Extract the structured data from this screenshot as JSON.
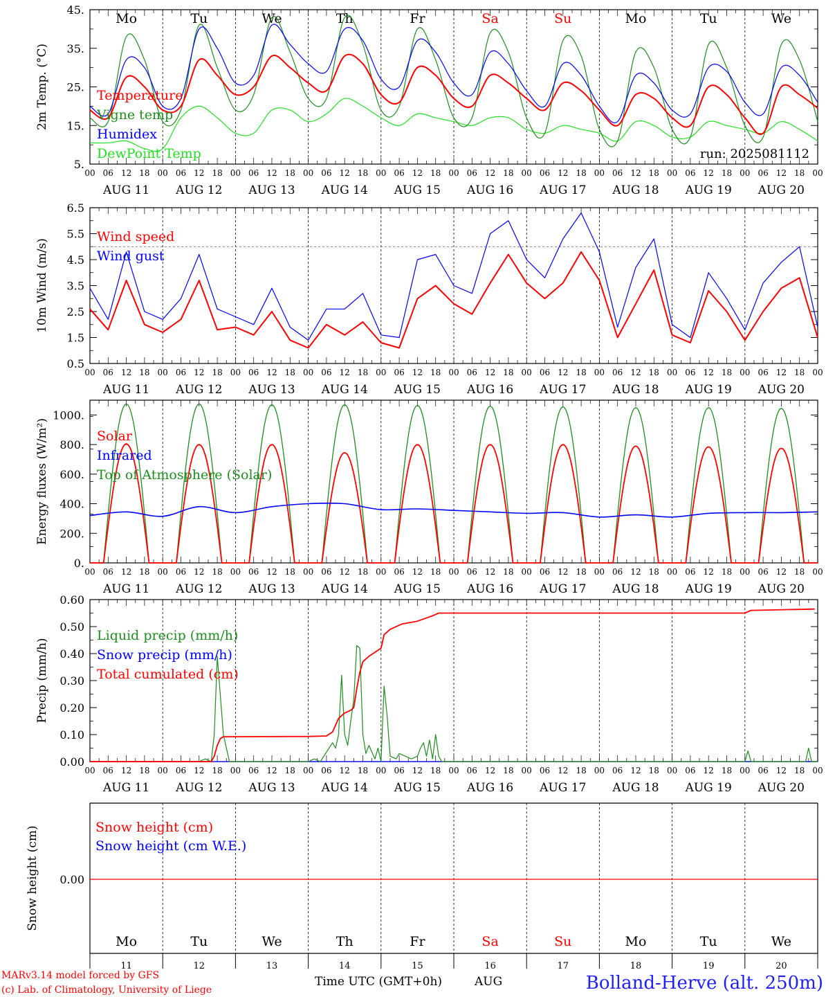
{
  "colors": {
    "red": "#ff0000",
    "green": "#1e8c1e",
    "blue": "#0000ff",
    "lightgreen": "#22e022",
    "axis": "#000000",
    "location_blue": "#2020ff"
  },
  "days": {
    "weekdays_top": [
      "Mo",
      "Tu",
      "We",
      "Th",
      "Fr",
      "Sa",
      "Su",
      "Mo",
      "Tu",
      "We"
    ],
    "weekend_flags": [
      false,
      false,
      false,
      false,
      false,
      true,
      true,
      false,
      false,
      false
    ],
    "date_labels": [
      "AUG 11",
      "AUG 12",
      "AUG 13",
      "AUG 14",
      "AUG 15",
      "AUG 16",
      "AUG 17",
      "AUG 18",
      "AUG 19",
      "AUG 20"
    ],
    "day_numbers": [
      "11",
      "12",
      "13",
      "14",
      "15",
      "16",
      "17",
      "18",
      "19",
      "20"
    ],
    "hour_ticks": [
      "00",
      "06",
      "12",
      "18"
    ],
    "final_hour": "00"
  },
  "footer": {
    "credit_line1": "MARv3.14 model forced by GFS",
    "credit_line2": "(c) Lab. of Climatology, University of Liege",
    "time_label": "Time UTC (GMT+0h)",
    "month": "AUG",
    "location": "Bolland-Herve (alt. 250m)"
  },
  "chart_data": [
    {
      "id": "temperature",
      "type": "line",
      "ylabel": "2m Temp. (°C)",
      "ylim": [
        5,
        45
      ],
      "yticks": [
        "5.",
        "15.",
        "25.",
        "35.",
        "45."
      ],
      "run_label": "run: 2025081112",
      "legend": [
        {
          "label": "Temperature",
          "color": "red"
        },
        {
          "label": "Vigne temp",
          "color": "green"
        },
        {
          "label": "Humidex",
          "color": "blue"
        },
        {
          "label": "DewPoint Temp",
          "color": "lightgreen"
        }
      ],
      "x_hours": [
        0,
        6,
        12,
        18,
        24,
        30,
        36,
        42,
        48,
        54,
        60,
        66,
        72,
        78,
        84,
        90,
        96,
        102,
        108,
        114,
        120,
        126,
        132,
        138,
        144,
        150,
        156,
        162,
        168,
        174,
        180,
        186,
        192,
        198,
        204,
        210,
        216,
        222,
        228,
        234,
        240
      ],
      "series": [
        {
          "name": "Temperature",
          "color": "red",
          "values": [
            19,
            17,
            27.5,
            25,
            19,
            20,
            32,
            28,
            23,
            25,
            33,
            30,
            26,
            24,
            33,
            31,
            23,
            21,
            30,
            28,
            22,
            20,
            28,
            26,
            22,
            19,
            26,
            24,
            19,
            15,
            23,
            22,
            17,
            15,
            25,
            23,
            17,
            13,
            25,
            23,
            19.5
          ]
        },
        {
          "name": "Vigne temp",
          "color": "green",
          "values": [
            17,
            16,
            38,
            32,
            16,
            19,
            41,
            30,
            19,
            23,
            43,
            34,
            22,
            22,
            43,
            36,
            19,
            20,
            40,
            32,
            17,
            17,
            39,
            34,
            17,
            13,
            37,
            33,
            14,
            11,
            34,
            30,
            14,
            12,
            36,
            30,
            15,
            12,
            36,
            32,
            16
          ]
        },
        {
          "name": "Humidex",
          "color": "blue",
          "values": [
            20,
            18,
            32,
            30,
            20,
            22,
            40,
            35,
            26,
            28,
            41,
            36,
            31,
            29,
            40,
            37,
            27,
            25,
            37,
            34,
            26,
            23,
            34,
            31,
            24,
            20,
            31,
            28,
            20,
            16,
            28,
            26,
            19,
            18,
            30,
            29,
            21,
            18,
            30,
            28,
            21
          ]
        },
        {
          "name": "DewPoint Temp",
          "color": "lightgreen",
          "values": [
            10.5,
            10.5,
            11,
            9,
            9,
            17,
            20,
            17,
            13,
            13,
            19,
            19,
            16,
            18,
            22,
            20,
            17,
            15,
            18,
            17,
            16,
            15,
            17,
            17,
            14,
            13,
            15,
            14,
            13,
            11,
            16,
            15,
            12,
            12,
            16,
            15,
            14,
            13,
            16,
            14,
            11
          ]
        }
      ]
    },
    {
      "id": "wind",
      "type": "line",
      "ylabel": "10m Wind (m/s)",
      "ylim": [
        0.5,
        6.5
      ],
      "yticks": [
        "0.5",
        "1.5",
        "2.5",
        "3.5",
        "4.5",
        "5.5",
        "6.5"
      ],
      "reference_line": 5.0,
      "legend": [
        {
          "label": "Wind speed",
          "color": "red"
        },
        {
          "label": "Wind gust",
          "color": "blue"
        }
      ],
      "x_hours": [
        0,
        6,
        12,
        18,
        24,
        30,
        36,
        42,
        48,
        54,
        60,
        66,
        72,
        78,
        84,
        90,
        96,
        102,
        108,
        114,
        120,
        126,
        132,
        138,
        144,
        150,
        156,
        162,
        168,
        174,
        180,
        186,
        192,
        198,
        204,
        210,
        216,
        222,
        228,
        234,
        240
      ],
      "series": [
        {
          "name": "Wind speed",
          "color": "red",
          "values": [
            2.6,
            1.8,
            3.7,
            2.0,
            1.7,
            2.2,
            3.7,
            1.8,
            1.9,
            1.6,
            2.5,
            1.4,
            1.1,
            2.0,
            1.6,
            2.1,
            1.3,
            1.1,
            3.0,
            3.5,
            2.8,
            2.4,
            3.6,
            4.7,
            3.6,
            3.0,
            3.6,
            4.8,
            3.7,
            1.5,
            2.8,
            4.1,
            1.6,
            1.3,
            3.3,
            2.5,
            1.4,
            2.5,
            3.4,
            3.8,
            1.5
          ]
        },
        {
          "name": "Wind gust",
          "color": "blue",
          "values": [
            3.4,
            2.2,
            4.8,
            2.5,
            2.2,
            3.0,
            4.7,
            2.6,
            2.3,
            2.0,
            3.4,
            1.9,
            1.4,
            2.6,
            2.6,
            3.2,
            1.6,
            1.5,
            4.5,
            4.7,
            3.5,
            3.2,
            5.5,
            6.0,
            4.5,
            3.8,
            5.3,
            6.3,
            4.8,
            1.9,
            4.2,
            5.3,
            2.0,
            1.5,
            4.0,
            3.0,
            1.8,
            3.6,
            4.4,
            5.0,
            1.9
          ]
        }
      ]
    },
    {
      "id": "energy",
      "type": "line",
      "ylabel": "Energy fluxes (W/m²)",
      "ylim": [
        0,
        1100
      ],
      "yticks": [
        "0.",
        "200.",
        "400.",
        "600.",
        "800.",
        "1000."
      ],
      "legend": [
        {
          "label": "Solar",
          "color": "red"
        },
        {
          "label": "Infrared",
          "color": "blue"
        },
        {
          "label": "Top of Atmosphere (Solar)",
          "color": "green"
        }
      ],
      "solar_daily_peak": [
        805,
        800,
        800,
        745,
        800,
        800,
        800,
        790,
        785,
        775
      ],
      "toa_daily_peak": [
        1075,
        1075,
        1070,
        1070,
        1065,
        1060,
        1055,
        1050,
        1050,
        1045
      ],
      "sun_hours": [
        4.5,
        19.5
      ],
      "x_hours": [
        0,
        12,
        24,
        36,
        48,
        60,
        72,
        84,
        96,
        108,
        120,
        132,
        144,
        156,
        168,
        180,
        192,
        204,
        216,
        228,
        240
      ],
      "series": [
        {
          "name": "Infrared",
          "color": "blue",
          "values": [
            320,
            345,
            315,
            380,
            340,
            380,
            400,
            400,
            360,
            365,
            355,
            345,
            335,
            340,
            310,
            325,
            310,
            335,
            340,
            340,
            345
          ]
        }
      ]
    },
    {
      "id": "precip",
      "type": "line",
      "ylabel": "Precip (mm/h)",
      "ylim": [
        0,
        0.6
      ],
      "yticks": [
        "0.00",
        "0.10",
        "0.20",
        "0.30",
        "0.40",
        "0.50",
        "0.60"
      ],
      "legend": [
        {
          "label": "Liquid precip (mm/h)",
          "color": "green"
        },
        {
          "label": "Snow precip (mm/h)",
          "color": "blue"
        },
        {
          "label": "Total cumulated (cm)",
          "color": "red"
        }
      ],
      "series": [
        {
          "name": "Liquid precip (mm/h)",
          "color": "green",
          "points": [
            [
              0,
              0
            ],
            [
              36,
              0
            ],
            [
              38,
              0.01
            ],
            [
              40,
              0
            ],
            [
              41,
              0.1
            ],
            [
              42,
              0.39
            ],
            [
              44,
              0.1
            ],
            [
              46,
              0
            ],
            [
              72,
              0
            ],
            [
              74,
              0.01
            ],
            [
              76,
              0
            ],
            [
              80,
              0.07
            ],
            [
              81,
              0.05
            ],
            [
              82,
              0.1
            ],
            [
              83,
              0.32
            ],
            [
              84,
              0.1
            ],
            [
              85,
              0.06
            ],
            [
              86,
              0.15
            ],
            [
              87,
              0.23
            ],
            [
              88,
              0.43
            ],
            [
              89,
              0.42
            ],
            [
              90,
              0.1
            ],
            [
              91,
              0.03
            ],
            [
              92,
              0.06
            ],
            [
              94,
              0.01
            ],
            [
              95,
              0.05
            ],
            [
              96,
              0
            ],
            [
              97,
              0.28
            ],
            [
              98,
              0.17
            ],
            [
              99,
              0.02
            ],
            [
              101,
              0.01
            ],
            [
              102,
              0.03
            ],
            [
              104,
              0.02
            ],
            [
              106,
              0.01
            ],
            [
              108,
              0.02
            ],
            [
              109,
              0.05
            ],
            [
              110,
              0.07
            ],
            [
              111,
              0.02
            ],
            [
              112,
              0.08
            ],
            [
              113,
              0.01
            ],
            [
              114,
              0.1
            ],
            [
              115,
              0.02
            ],
            [
              116,
              0
            ],
            [
              216,
              0
            ],
            [
              217,
              0.04
            ],
            [
              218,
              0
            ],
            [
              236,
              0
            ],
            [
              237,
              0.05
            ],
            [
              238,
              0
            ],
            [
              240,
              0
            ]
          ]
        },
        {
          "name": "Total cumulated (cm)",
          "color": "red",
          "points": [
            [
              0,
              0
            ],
            [
              40,
              0
            ],
            [
              41,
              0.02
            ],
            [
              42,
              0.06
            ],
            [
              43,
              0.085
            ],
            [
              44,
              0.092
            ],
            [
              72,
              0.093
            ],
            [
              78,
              0.095
            ],
            [
              80,
              0.11
            ],
            [
              82,
              0.16
            ],
            [
              84,
              0.18
            ],
            [
              86,
              0.19
            ],
            [
              87,
              0.2
            ],
            [
              88,
              0.27
            ],
            [
              89,
              0.33
            ],
            [
              90,
              0.37
            ],
            [
              92,
              0.39
            ],
            [
              96,
              0.42
            ],
            [
              97,
              0.47
            ],
            [
              99,
              0.49
            ],
            [
              103,
              0.51
            ],
            [
              108,
              0.52
            ],
            [
              113,
              0.54
            ],
            [
              115,
              0.55
            ],
            [
              216,
              0.55
            ],
            [
              218,
              0.56
            ],
            [
              239,
              0.565
            ]
          ]
        },
        {
          "name": "Snow precip (mm/h)",
          "color": "blue",
          "points": [
            [
              0,
              0
            ],
            [
              240,
              0
            ]
          ]
        }
      ]
    },
    {
      "id": "snow",
      "type": "line",
      "ylabel": "Snow height (cm)",
      "yticks": [
        "0.00"
      ],
      "legend": [
        {
          "label": "Snow height (cm)",
          "color": "red"
        },
        {
          "label": "Snow height (cm W.E.)",
          "color": "blue"
        }
      ],
      "series": [
        {
          "name": "Snow height (cm)",
          "color": "red",
          "points": [
            [
              0,
              0
            ],
            [
              240,
              0
            ]
          ]
        }
      ]
    }
  ]
}
